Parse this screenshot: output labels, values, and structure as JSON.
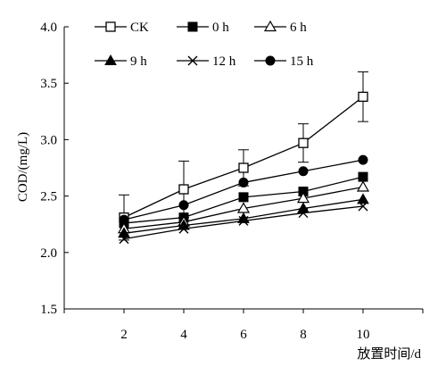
{
  "chart_data": {
    "type": "line",
    "xlabel": "放置时间/d",
    "ylabel": "COD/(mg/L)",
    "x": [
      2,
      4,
      6,
      8,
      10
    ],
    "xlim": [
      0,
      12
    ],
    "x_ticks": [
      "2",
      "4",
      "6",
      "8",
      "10"
    ],
    "ylim": [
      1.5,
      4.0
    ],
    "y_ticks": [
      "1.5",
      "2.0",
      "2.5",
      "3.0",
      "3.5",
      "4.0"
    ],
    "grid": false,
    "legend_position": "top-left",
    "series": [
      {
        "name": "CK",
        "marker": "open-square",
        "values": [
          2.31,
          2.56,
          2.75,
          2.97,
          3.38
        ],
        "error": [
          0.2,
          0.25,
          0.16,
          0.17,
          0.22
        ]
      },
      {
        "name": "0 h",
        "marker": "filled-square",
        "values": [
          2.26,
          2.31,
          2.49,
          2.54,
          2.67
        ]
      },
      {
        "name": "6 h",
        "marker": "open-triangle",
        "values": [
          2.21,
          2.27,
          2.39,
          2.48,
          2.58
        ]
      },
      {
        "name": "9 h",
        "marker": "filled-triangle",
        "values": [
          2.17,
          2.24,
          2.3,
          2.39,
          2.47
        ]
      },
      {
        "name": "12 h",
        "marker": "x",
        "values": [
          2.12,
          2.21,
          2.28,
          2.35,
          2.41
        ]
      },
      {
        "name": "15 h",
        "marker": "filled-circle",
        "values": [
          2.29,
          2.42,
          2.62,
          2.72,
          2.82
        ]
      }
    ]
  }
}
